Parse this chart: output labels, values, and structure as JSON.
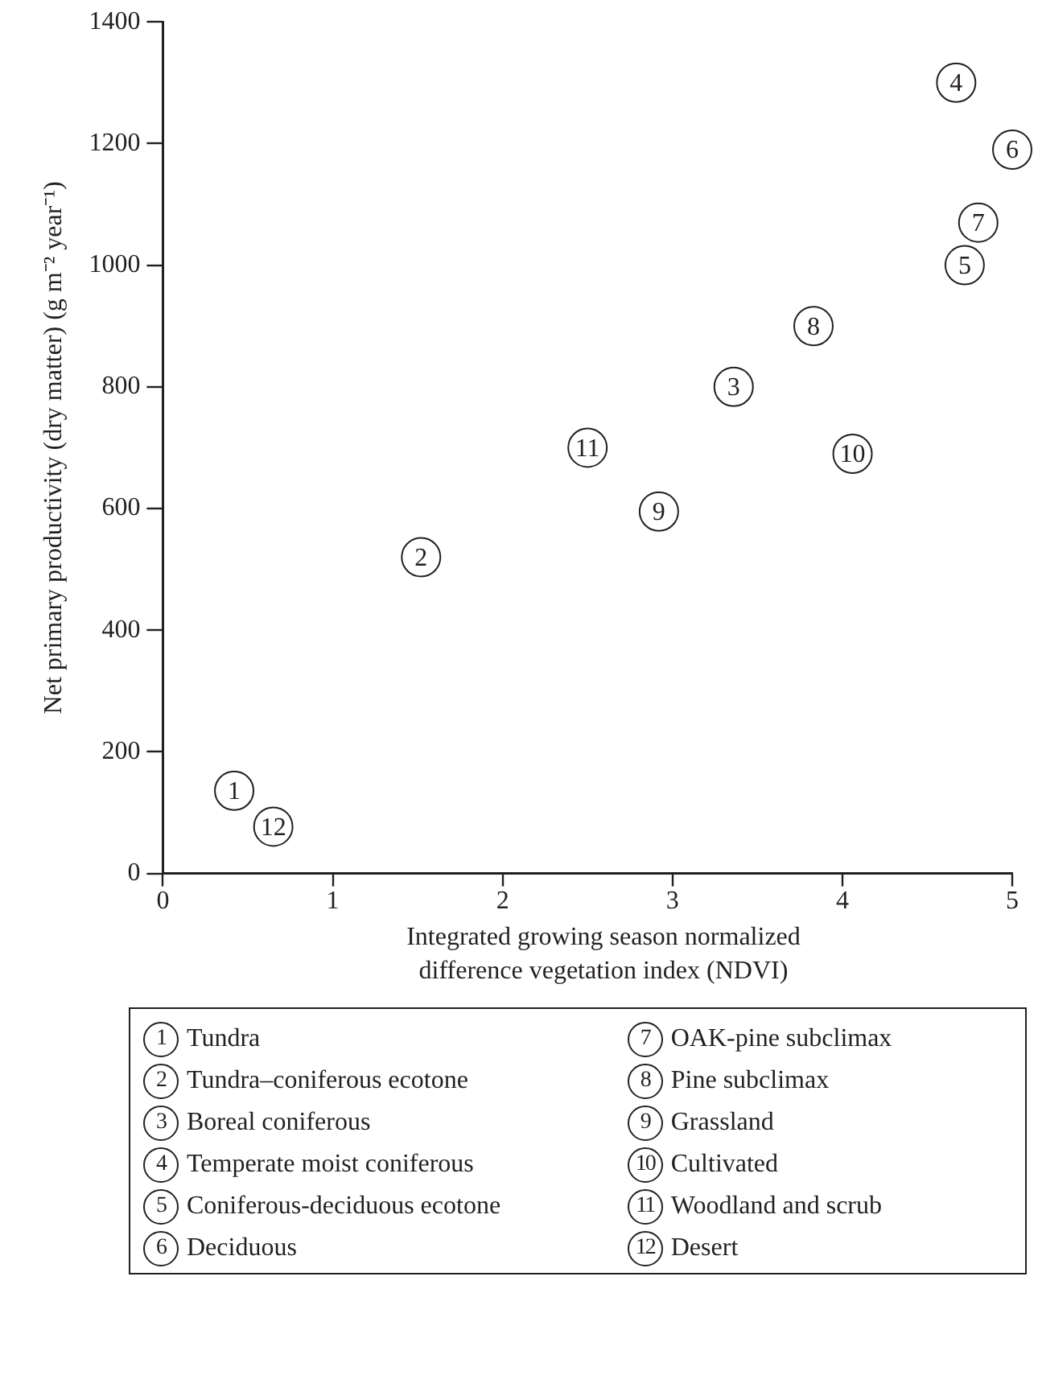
{
  "chart_data": {
    "type": "scatter",
    "xlabel": "Integrated growing season normalized difference vegetation index (NDVI)",
    "ylabel": "Net primary productivity (dry matter) (g m⁻² year⁻¹)",
    "xlim": [
      0,
      5
    ],
    "xticks": [
      0,
      1,
      2,
      3,
      4,
      5
    ],
    "ylim": [
      0,
      1400
    ],
    "yticks": [
      0,
      200,
      400,
      600,
      800,
      1000,
      1200,
      1400
    ],
    "grid": false,
    "legend": "bottom",
    "marker": "circle",
    "series": [
      {
        "name": "Tundra",
        "color": "#231f20",
        "x": [
          0.42
        ],
        "values": [
          136
        ]
      },
      {
        "name": "Tundra–coniferous ecotone",
        "color": "#231f20",
        "x": [
          1.52
        ],
        "values": [
          520
        ]
      },
      {
        "name": "Boreal coniferous",
        "color": "#231f20",
        "x": [
          3.36
        ],
        "values": [
          800
        ]
      },
      {
        "name": "Temperate moist coniferous",
        "color": "#231f20",
        "x": [
          4.67
        ],
        "values": [
          1300
        ]
      },
      {
        "name": "Coniferous-deciduous ecotone",
        "color": "#231f20",
        "x": [
          4.72
        ],
        "values": [
          1000
        ]
      },
      {
        "name": "Deciduous",
        "color": "#231f20",
        "x": [
          5.0
        ],
        "values": [
          1190
        ]
      },
      {
        "name": "OAK-pine subclimax",
        "color": "#231f20",
        "x": [
          4.8
        ],
        "values": [
          1070
        ]
      },
      {
        "name": "Pine subclimax",
        "color": "#231f20",
        "x": [
          3.83
        ],
        "values": [
          900
        ]
      },
      {
        "name": "Grassland",
        "color": "#231f20",
        "x": [
          2.92
        ],
        "values": [
          595
        ]
      },
      {
        "name": "Cultivated",
        "color": "#231f20",
        "x": [
          4.06
        ],
        "values": [
          690
        ]
      },
      {
        "name": "Woodland and scrub",
        "color": "#231f20",
        "x": [
          2.5
        ],
        "values": [
          700
        ]
      },
      {
        "name": "Desert",
        "color": "#231f20",
        "x": [
          0.65
        ],
        "values": [
          77
        ]
      }
    ],
    "annotations": [
      {
        "text": "1",
        "x": 0.42,
        "y": 136
      },
      {
        "text": "2",
        "x": 1.52,
        "y": 520
      },
      {
        "text": "3",
        "x": 3.36,
        "y": 800
      },
      {
        "text": "4",
        "x": 4.67,
        "y": 1300
      },
      {
        "text": "5",
        "x": 4.72,
        "y": 1000
      },
      {
        "text": "6",
        "x": 5.0,
        "y": 1190
      },
      {
        "text": "7",
        "x": 4.8,
        "y": 1070
      },
      {
        "text": "8",
        "x": 3.83,
        "y": 900
      },
      {
        "text": "9",
        "x": 2.92,
        "y": 595
      },
      {
        "text": "10",
        "x": 4.06,
        "y": 690
      },
      {
        "text": "11",
        "x": 2.5,
        "y": 700
      },
      {
        "text": "12",
        "x": 0.65,
        "y": 77
      }
    ]
  }
}
